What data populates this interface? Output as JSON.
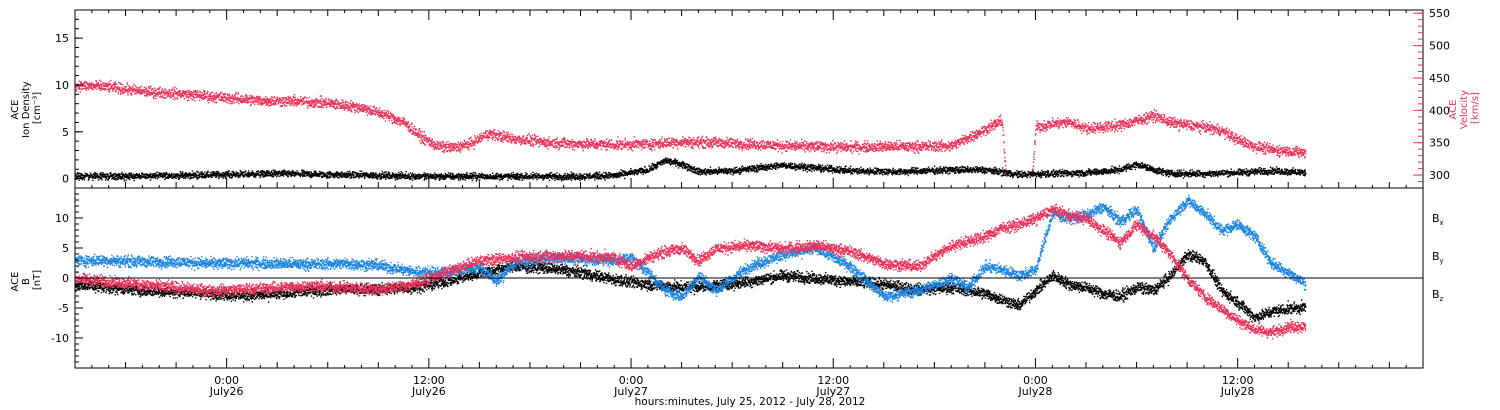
{
  "figure": {
    "x_axis_title": "hours:minutes, July 25, 2012 - July 28, 2012",
    "x_ticks": [
      {
        "t": 0.0,
        "time": "0:00",
        "date": "July26"
      },
      {
        "t": 12.0,
        "time": "12:00",
        "date": "July26"
      },
      {
        "t": 24.0,
        "time": "0:00",
        "date": "July27"
      },
      {
        "t": 36.0,
        "time": "12:00",
        "date": "July27"
      },
      {
        "t": 48.0,
        "time": "0:00",
        "date": "July28"
      },
      {
        "t": 60.0,
        "time": "12:00",
        "date": "July28"
      }
    ]
  },
  "chart_data": [
    {
      "type": "scatter",
      "panel": "top",
      "x_unit": "hours relative to 2012-07-26 00:00 UT",
      "xlim": [
        -9.0,
        71.0
      ],
      "ylabel_left": [
        "ACE",
        "Ion Density",
        "[cm⁻³]"
      ],
      "ylim_left": [
        -1,
        18
      ],
      "yticks_left": [
        0,
        5,
        10,
        15
      ],
      "ylabel_right": [
        "ACE",
        "Velocity",
        "[km/s]"
      ],
      "ylim_right": [
        280,
        555
      ],
      "yticks_right": [
        300,
        350,
        400,
        450,
        500,
        550
      ],
      "colors": {
        "density": "#000000",
        "velocity": "#e8325a"
      },
      "series": [
        {
          "name": "Ion Density",
          "axis": "left",
          "color": "#000000",
          "t": [
            -9,
            -6,
            -3,
            0,
            3,
            6,
            9,
            12,
            15,
            18,
            21,
            23,
            25,
            26,
            27,
            28,
            30,
            33,
            35,
            37,
            40,
            43,
            45,
            47,
            49,
            51,
            53,
            54,
            55,
            56,
            58,
            60,
            62,
            63,
            64
          ],
          "v": [
            0.3,
            0.3,
            0.4,
            0.5,
            0.6,
            0.5,
            0.4,
            0.3,
            0.3,
            0.3,
            0.3,
            0.4,
            1.0,
            2.0,
            1.6,
            0.8,
            0.9,
            1.5,
            1.2,
            0.9,
            0.8,
            1.0,
            1.0,
            0.5,
            0.6,
            0.7,
            1.0,
            1.6,
            1.0,
            0.6,
            0.6,
            0.7,
            0.9,
            0.8,
            0.7
          ]
        },
        {
          "name": "Velocity",
          "axis": "right",
          "color": "#e8325a",
          "t": [
            -9,
            -7,
            -5,
            -3,
            0,
            2,
            4,
            6,
            8,
            9.5,
            10.5,
            11.5,
            12.5,
            13.5,
            14.5,
            15.5,
            17,
            19,
            21,
            23,
            25,
            27,
            29,
            31,
            33,
            35,
            37,
            39,
            41,
            43,
            44.5,
            46,
            47,
            48,
            49,
            50,
            51,
            52,
            53,
            54,
            55,
            56,
            57,
            58,
            59,
            60,
            61,
            62,
            63,
            64
          ],
          "v": [
            440,
            437,
            430,
            427,
            420,
            416,
            415,
            412,
            405,
            393,
            382,
            360,
            345,
            343,
            350,
            365,
            357,
            351,
            349,
            348,
            349,
            352,
            351,
            349,
            346,
            345,
            344,
            345,
            345,
            346,
            365,
            385,
            0,
            375,
            380,
            383,
            373,
            375,
            378,
            385,
            393,
            382,
            378,
            375,
            370,
            355,
            345,
            340,
            338,
            335
          ]
        }
      ]
    },
    {
      "type": "scatter",
      "panel": "bottom",
      "x_unit": "hours relative to 2012-07-26 00:00 UT",
      "xlim": [
        -9.0,
        71.0
      ],
      "ylabel": [
        "ACE",
        "B",
        "[nT]"
      ],
      "ylim": [
        -15,
        15
      ],
      "yticks": [
        -10,
        -5,
        0,
        5,
        10
      ],
      "zero_line": true,
      "series": [
        {
          "name": "Bx",
          "label_main": "B",
          "label_sub": "x",
          "color": "#000000",
          "t": [
            -9,
            -7,
            -5,
            -3,
            -1,
            1,
            3,
            5,
            7,
            9,
            11,
            13,
            15,
            17,
            19,
            21,
            23,
            25,
            27,
            29,
            31,
            33,
            35,
            37,
            39,
            41,
            43,
            45,
            46,
            47,
            48,
            49,
            50,
            51,
            52,
            53,
            54,
            55,
            56,
            57,
            58,
            59,
            60,
            61,
            62,
            63,
            64
          ],
          "v": [
            -1.0,
            -1.5,
            -2.0,
            -2.2,
            -2.5,
            -2.8,
            -2.6,
            -2.0,
            -1.7,
            -1.8,
            -1.5,
            -0.5,
            1.0,
            2.0,
            1.8,
            1.0,
            -0.2,
            -1.0,
            -1.5,
            -1.2,
            -0.5,
            0.5,
            0.0,
            -0.5,
            -1.0,
            -1.8,
            -1.5,
            -2.5,
            -3.5,
            -4.5,
            -2.0,
            0.5,
            -1.0,
            -1.5,
            -2.5,
            -3.0,
            -1.5,
            -2.0,
            0.5,
            4.0,
            3.0,
            -2.0,
            -4.0,
            -6.5,
            -5.5,
            -5.0,
            -4.8
          ]
        },
        {
          "name": "By",
          "label_main": "B",
          "label_sub": "y",
          "color": "#1a84e0",
          "t": [
            -9,
            -7,
            -5,
            -3,
            -1,
            1,
            3,
            5,
            7,
            9,
            11,
            13,
            15,
            16,
            17,
            19,
            21,
            23,
            24,
            25,
            26,
            27,
            28,
            29,
            31,
            33,
            35,
            37,
            39,
            41,
            43,
            44,
            45,
            46,
            47,
            48,
            49,
            50,
            51,
            52,
            53,
            54,
            55,
            56,
            57,
            58,
            59,
            60,
            61,
            62,
            63,
            64
          ],
          "v": [
            3.0,
            3.0,
            2.8,
            2.8,
            2.5,
            2.6,
            2.5,
            2.4,
            2.5,
            2.2,
            1.2,
            1.0,
            2.0,
            -0.5,
            2.5,
            3.5,
            3.2,
            3.0,
            3.5,
            1.0,
            -2.0,
            -3.0,
            0.5,
            -2.0,
            2.0,
            4.0,
            5.0,
            2.0,
            -3.0,
            -2.0,
            0.0,
            -1.5,
            2.0,
            1.5,
            0.5,
            1.5,
            11.0,
            10.0,
            10.5,
            12.0,
            9.5,
            11.5,
            5.0,
            10.0,
            13.0,
            11.0,
            8.0,
            9.0,
            7.0,
            2.5,
            1.0,
            -1.0
          ]
        },
        {
          "name": "Bz",
          "label_main": "B",
          "label_sub": "z",
          "color": "#e8325a",
          "t": [
            -9,
            -7,
            -5,
            -3,
            -1,
            1,
            3,
            5,
            7,
            9,
            11,
            13,
            15,
            17,
            19,
            21,
            23,
            24,
            25,
            26,
            27,
            28,
            29,
            31,
            33,
            35,
            37,
            39,
            41,
            43,
            45,
            46,
            47,
            48,
            49,
            50,
            51,
            52,
            53,
            54,
            55,
            56,
            57,
            58,
            59,
            60,
            61,
            62,
            63,
            64
          ],
          "v": [
            0.0,
            -0.5,
            -1.0,
            -1.5,
            -2.0,
            -1.8,
            -1.5,
            -1.2,
            -1.5,
            -1.8,
            -1.0,
            1.0,
            3.0,
            3.5,
            3.8,
            3.8,
            3.5,
            2.0,
            3.5,
            4.5,
            5.0,
            3.0,
            5.0,
            5.5,
            5.0,
            5.5,
            4.5,
            2.5,
            2.0,
            5.5,
            7.0,
            8.5,
            9.0,
            10.0,
            11.5,
            10.5,
            10.0,
            8.0,
            6.0,
            9.0,
            7.0,
            4.0,
            0.0,
            -3.0,
            -5.0,
            -7.0,
            -8.5,
            -9.0,
            -8.0,
            -8.0
          ]
        }
      ]
    }
  ]
}
